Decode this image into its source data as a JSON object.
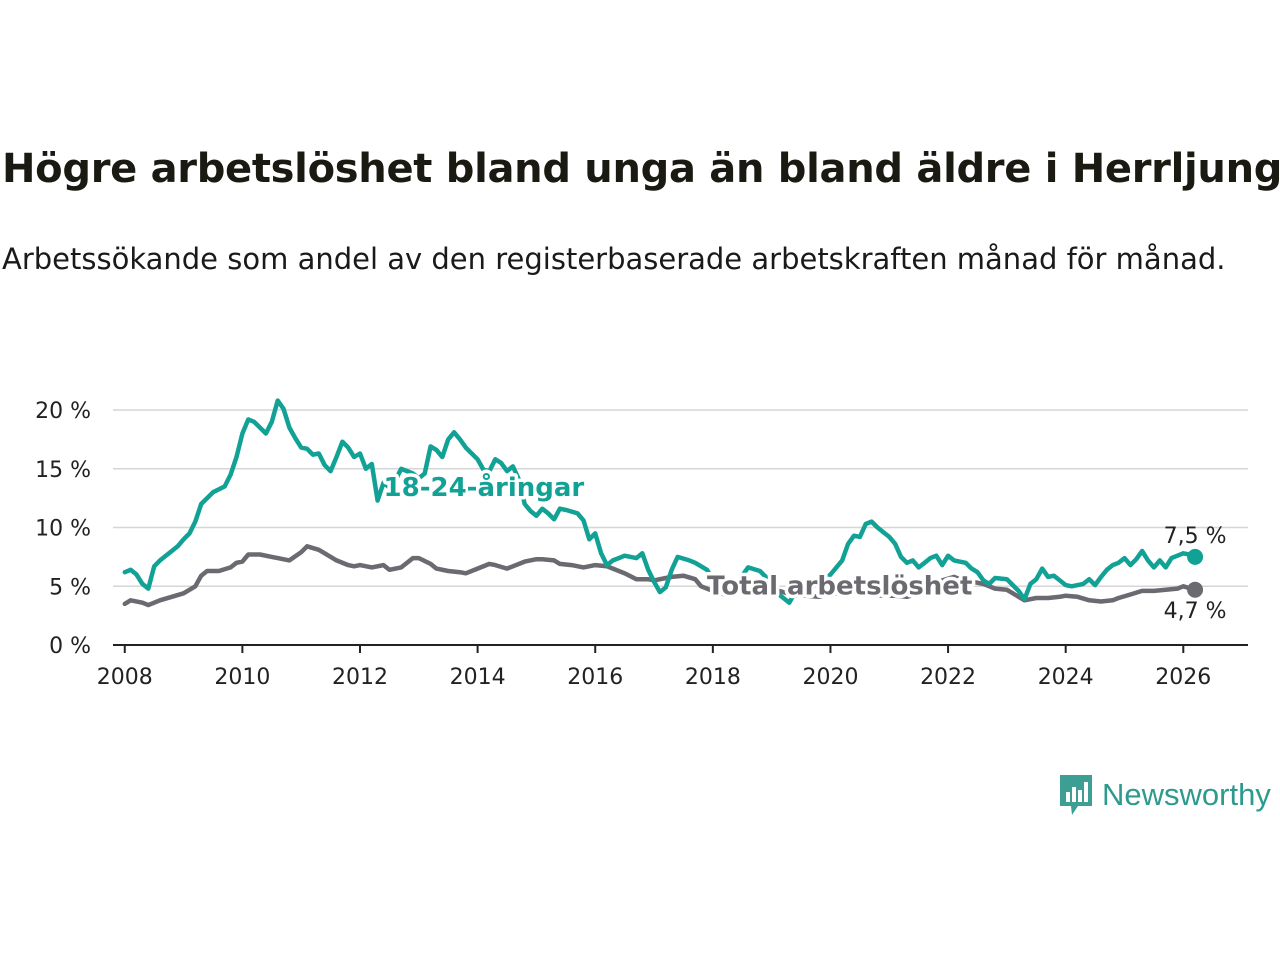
{
  "title": "Högre arbetslöshet bland unga än bland äldre i Herrljunga",
  "subtitle": "Arbetssökande som andel av den registerbaserade arbetskraften månad för månad.",
  "brand": {
    "name": "Newsworthy",
    "color": "#2e9a8e"
  },
  "chart_data": {
    "type": "line",
    "ylim": [
      0,
      20
    ],
    "xlim": [
      2007.8,
      2027.1
    ],
    "y_ticks": [
      {
        "value": 0,
        "label": "0 %"
      },
      {
        "value": 5,
        "label": "5 %"
      },
      {
        "value": 10,
        "label": "10 %"
      },
      {
        "value": 15,
        "label": "15 %"
      },
      {
        "value": 20,
        "label": "20 %"
      }
    ],
    "x_ticks": [
      {
        "value": 2008,
        "label": "2008"
      },
      {
        "value": 2010,
        "label": "2010"
      },
      {
        "value": 2012,
        "label": "2012"
      },
      {
        "value": 2014,
        "label": "2014"
      },
      {
        "value": 2016,
        "label": "2016"
      },
      {
        "value": 2018,
        "label": "2018"
      },
      {
        "value": 2020,
        "label": "2020"
      },
      {
        "value": 2022,
        "label": "2022"
      },
      {
        "value": 2024,
        "label": "2024"
      },
      {
        "value": 2026,
        "label": "2026"
      }
    ],
    "grid": true,
    "series": [
      {
        "name": "Total arbetslöshet",
        "color": "#6b6a70",
        "label": "Total arbetslöshet",
        "end_label": "4,7 %",
        "points": [
          [
            2008.0,
            3.5
          ],
          [
            2008.1,
            3.8
          ],
          [
            2008.3,
            3.6
          ],
          [
            2008.4,
            3.4
          ],
          [
            2008.6,
            3.8
          ],
          [
            2008.8,
            4.1
          ],
          [
            2009.0,
            4.4
          ],
          [
            2009.2,
            5.0
          ],
          [
            2009.3,
            5.9
          ],
          [
            2009.4,
            6.3
          ],
          [
            2009.6,
            6.3
          ],
          [
            2009.8,
            6.6
          ],
          [
            2009.9,
            7.0
          ],
          [
            2010.0,
            7.1
          ],
          [
            2010.1,
            7.7
          ],
          [
            2010.3,
            7.7
          ],
          [
            2010.5,
            7.5
          ],
          [
            2010.6,
            7.4
          ],
          [
            2010.8,
            7.2
          ],
          [
            2011.0,
            7.9
          ],
          [
            2011.1,
            8.4
          ],
          [
            2011.3,
            8.1
          ],
          [
            2011.4,
            7.8
          ],
          [
            2011.6,
            7.2
          ],
          [
            2011.8,
            6.8
          ],
          [
            2011.9,
            6.7
          ],
          [
            2012.0,
            6.8
          ],
          [
            2012.2,
            6.6
          ],
          [
            2012.4,
            6.8
          ],
          [
            2012.5,
            6.4
          ],
          [
            2012.7,
            6.6
          ],
          [
            2012.9,
            7.4
          ],
          [
            2013.0,
            7.4
          ],
          [
            2013.2,
            6.9
          ],
          [
            2013.3,
            6.5
          ],
          [
            2013.5,
            6.3
          ],
          [
            2013.7,
            6.2
          ],
          [
            2013.8,
            6.1
          ],
          [
            2014.0,
            6.5
          ],
          [
            2014.2,
            6.9
          ],
          [
            2014.3,
            6.8
          ],
          [
            2014.5,
            6.5
          ],
          [
            2014.6,
            6.7
          ],
          [
            2014.8,
            7.1
          ],
          [
            2015.0,
            7.3
          ],
          [
            2015.1,
            7.3
          ],
          [
            2015.3,
            7.2
          ],
          [
            2015.4,
            6.9
          ],
          [
            2015.6,
            6.8
          ],
          [
            2015.8,
            6.6
          ],
          [
            2016.0,
            6.8
          ],
          [
            2016.2,
            6.7
          ],
          [
            2016.3,
            6.5
          ],
          [
            2016.5,
            6.1
          ],
          [
            2016.7,
            5.6
          ],
          [
            2016.9,
            5.6
          ],
          [
            2017.0,
            5.5
          ],
          [
            2017.2,
            5.7
          ],
          [
            2017.3,
            5.8
          ],
          [
            2017.5,
            5.9
          ],
          [
            2017.7,
            5.6
          ],
          [
            2017.8,
            5.0
          ],
          [
            2018.0,
            4.6
          ],
          [
            2018.2,
            4.3
          ],
          [
            2018.3,
            4.7
          ],
          [
            2018.5,
            4.5
          ],
          [
            2018.7,
            4.7
          ],
          [
            2018.9,
            4.8
          ],
          [
            2019.0,
            4.8
          ],
          [
            2019.2,
            4.5
          ],
          [
            2019.4,
            4.2
          ],
          [
            2019.6,
            4.2
          ],
          [
            2019.8,
            4.1
          ],
          [
            2020.0,
            4.4
          ],
          [
            2020.2,
            4.4
          ],
          [
            2020.3,
            4.7
          ],
          [
            2020.5,
            4.5
          ],
          [
            2020.7,
            4.3
          ],
          [
            2020.9,
            4.2
          ],
          [
            2021.1,
            4.2
          ],
          [
            2021.3,
            4.1
          ],
          [
            2021.5,
            4.4
          ],
          [
            2021.7,
            4.7
          ],
          [
            2021.9,
            5.5
          ],
          [
            2022.1,
            5.8
          ],
          [
            2022.2,
            5.6
          ],
          [
            2022.4,
            5.4
          ],
          [
            2022.6,
            5.2
          ],
          [
            2022.8,
            4.8
          ],
          [
            2023.0,
            4.7
          ],
          [
            2023.1,
            4.4
          ],
          [
            2023.3,
            3.8
          ],
          [
            2023.5,
            4.0
          ],
          [
            2023.7,
            4.0
          ],
          [
            2023.9,
            4.1
          ],
          [
            2024.0,
            4.2
          ],
          [
            2024.2,
            4.1
          ],
          [
            2024.4,
            3.8
          ],
          [
            2024.6,
            3.7
          ],
          [
            2024.8,
            3.8
          ],
          [
            2024.9,
            4.0
          ],
          [
            2025.1,
            4.3
          ],
          [
            2025.3,
            4.6
          ],
          [
            2025.5,
            4.6
          ],
          [
            2025.7,
            4.7
          ],
          [
            2025.9,
            4.8
          ],
          [
            2026.0,
            5.0
          ],
          [
            2026.2,
            4.7
          ]
        ]
      },
      {
        "name": "18-24-åringar",
        "color": "#12a195",
        "label": "18-24-åringar",
        "end_label": "7,5 %",
        "points": [
          [
            2008.0,
            6.2
          ],
          [
            2008.1,
            6.4
          ],
          [
            2008.2,
            6.0
          ],
          [
            2008.3,
            5.2
          ],
          [
            2008.4,
            4.8
          ],
          [
            2008.5,
            6.7
          ],
          [
            2008.6,
            7.2
          ],
          [
            2008.8,
            8.0
          ],
          [
            2008.9,
            8.4
          ],
          [
            2009.0,
            9.0
          ],
          [
            2009.1,
            9.5
          ],
          [
            2009.2,
            10.5
          ],
          [
            2009.3,
            12.0
          ],
          [
            2009.5,
            13.0
          ],
          [
            2009.7,
            13.5
          ],
          [
            2009.8,
            14.5
          ],
          [
            2009.9,
            16.0
          ],
          [
            2010.0,
            18.0
          ],
          [
            2010.1,
            19.2
          ],
          [
            2010.2,
            19.0
          ],
          [
            2010.3,
            18.5
          ],
          [
            2010.4,
            18.0
          ],
          [
            2010.5,
            19.0
          ],
          [
            2010.6,
            20.8
          ],
          [
            2010.7,
            20.1
          ],
          [
            2010.8,
            18.5
          ],
          [
            2010.9,
            17.6
          ],
          [
            2011.0,
            16.8
          ],
          [
            2011.1,
            16.7
          ],
          [
            2011.2,
            16.2
          ],
          [
            2011.3,
            16.3
          ],
          [
            2011.4,
            15.3
          ],
          [
            2011.5,
            14.8
          ],
          [
            2011.6,
            16.0
          ],
          [
            2011.7,
            17.3
          ],
          [
            2011.8,
            16.8
          ],
          [
            2011.9,
            16.0
          ],
          [
            2012.0,
            16.3
          ],
          [
            2012.1,
            15.0
          ],
          [
            2012.2,
            15.4
          ],
          [
            2012.3,
            12.3
          ],
          [
            2012.4,
            13.8
          ],
          [
            2012.5,
            13.4
          ],
          [
            2012.6,
            14.0
          ],
          [
            2012.7,
            15.0
          ],
          [
            2012.9,
            14.6
          ],
          [
            2013.0,
            14.2
          ],
          [
            2013.1,
            14.6
          ],
          [
            2013.2,
            16.9
          ],
          [
            2013.3,
            16.6
          ],
          [
            2013.4,
            16.0
          ],
          [
            2013.5,
            17.5
          ],
          [
            2013.6,
            18.1
          ],
          [
            2013.7,
            17.5
          ],
          [
            2013.8,
            16.8
          ],
          [
            2014.0,
            15.8
          ],
          [
            2014.1,
            14.9
          ],
          [
            2014.2,
            14.8
          ],
          [
            2014.3,
            15.8
          ],
          [
            2014.4,
            15.5
          ],
          [
            2014.5,
            14.8
          ],
          [
            2014.6,
            15.2
          ],
          [
            2014.7,
            14.1
          ],
          [
            2014.8,
            12.0
          ],
          [
            2014.9,
            11.4
          ],
          [
            2015.0,
            11.0
          ],
          [
            2015.1,
            11.6
          ],
          [
            2015.2,
            11.2
          ],
          [
            2015.3,
            10.7
          ],
          [
            2015.4,
            11.6
          ],
          [
            2015.5,
            11.5
          ],
          [
            2015.7,
            11.2
          ],
          [
            2015.8,
            10.6
          ],
          [
            2015.9,
            9.0
          ],
          [
            2016.0,
            9.5
          ],
          [
            2016.1,
            7.8
          ],
          [
            2016.2,
            6.8
          ],
          [
            2016.3,
            7.2
          ],
          [
            2016.4,
            7.4
          ],
          [
            2016.5,
            7.6
          ],
          [
            2016.7,
            7.4
          ],
          [
            2016.8,
            7.8
          ],
          [
            2016.9,
            6.4
          ],
          [
            2017.0,
            5.4
          ],
          [
            2017.1,
            4.5
          ],
          [
            2017.2,
            4.9
          ],
          [
            2017.3,
            6.4
          ],
          [
            2017.4,
            7.5
          ],
          [
            2017.6,
            7.2
          ],
          [
            2017.7,
            7.0
          ],
          [
            2017.9,
            6.4
          ],
          [
            2018.0,
            5.6
          ],
          [
            2018.2,
            4.6
          ],
          [
            2018.3,
            4.5
          ],
          [
            2018.5,
            5.9
          ],
          [
            2018.6,
            6.6
          ],
          [
            2018.8,
            6.3
          ],
          [
            2018.9,
            5.8
          ],
          [
            2019.0,
            4.8
          ],
          [
            2019.2,
            4.0
          ],
          [
            2019.3,
            3.6
          ],
          [
            2019.4,
            4.5
          ],
          [
            2019.6,
            5.0
          ],
          [
            2019.8,
            5.1
          ],
          [
            2020.0,
            6.0
          ],
          [
            2020.2,
            7.2
          ],
          [
            2020.3,
            8.6
          ],
          [
            2020.4,
            9.3
          ],
          [
            2020.5,
            9.2
          ],
          [
            2020.6,
            10.3
          ],
          [
            2020.7,
            10.5
          ],
          [
            2020.8,
            10.0
          ],
          [
            2020.9,
            9.6
          ],
          [
            2021.0,
            9.2
          ],
          [
            2021.1,
            8.6
          ],
          [
            2021.2,
            7.5
          ],
          [
            2021.3,
            7.0
          ],
          [
            2021.4,
            7.2
          ],
          [
            2021.5,
            6.6
          ],
          [
            2021.6,
            7.0
          ],
          [
            2021.7,
            7.4
          ],
          [
            2021.8,
            7.6
          ],
          [
            2021.9,
            6.8
          ],
          [
            2022.0,
            7.6
          ],
          [
            2022.1,
            7.2
          ],
          [
            2022.3,
            7.0
          ],
          [
            2022.4,
            6.5
          ],
          [
            2022.5,
            6.2
          ],
          [
            2022.6,
            5.5
          ],
          [
            2022.7,
            5.2
          ],
          [
            2022.8,
            5.7
          ],
          [
            2023.0,
            5.6
          ],
          [
            2023.1,
            5.1
          ],
          [
            2023.2,
            4.6
          ],
          [
            2023.3,
            3.9
          ],
          [
            2023.4,
            5.2
          ],
          [
            2023.5,
            5.6
          ],
          [
            2023.6,
            6.5
          ],
          [
            2023.7,
            5.8
          ],
          [
            2023.8,
            5.9
          ],
          [
            2023.9,
            5.5
          ],
          [
            2024.0,
            5.1
          ],
          [
            2024.1,
            5.0
          ],
          [
            2024.3,
            5.2
          ],
          [
            2024.4,
            5.6
          ],
          [
            2024.5,
            5.1
          ],
          [
            2024.6,
            5.8
          ],
          [
            2024.7,
            6.4
          ],
          [
            2024.8,
            6.8
          ],
          [
            2024.9,
            7.0
          ],
          [
            2025.0,
            7.4
          ],
          [
            2025.1,
            6.8
          ],
          [
            2025.2,
            7.3
          ],
          [
            2025.3,
            8.0
          ],
          [
            2025.4,
            7.2
          ],
          [
            2025.5,
            6.6
          ],
          [
            2025.6,
            7.2
          ],
          [
            2025.7,
            6.6
          ],
          [
            2025.8,
            7.4
          ],
          [
            2025.9,
            7.6
          ],
          [
            2026.0,
            7.8
          ],
          [
            2026.1,
            7.7
          ],
          [
            2026.2,
            7.5
          ]
        ]
      }
    ]
  }
}
